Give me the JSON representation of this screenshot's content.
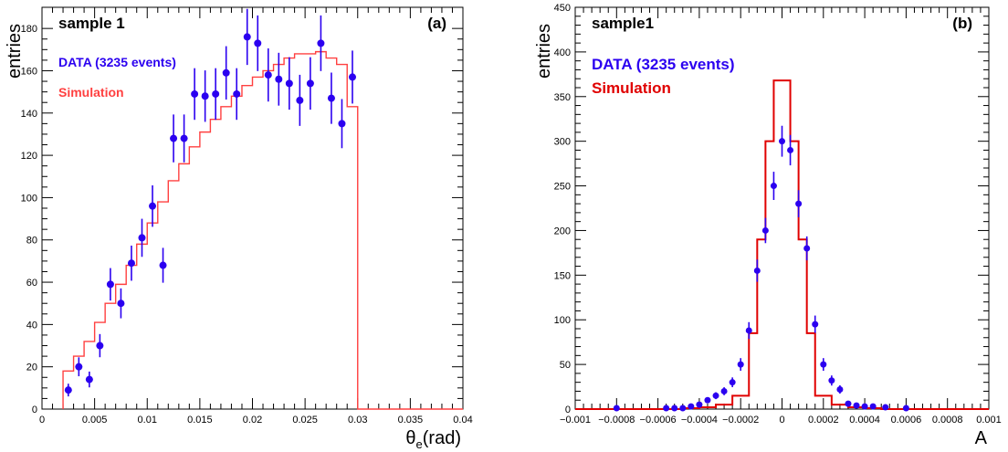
{
  "chart_data": [
    {
      "type": "scatter",
      "panel_label": "(a)",
      "title": "sample 1",
      "xlabel": "θe(rad)",
      "ylabel": "entries",
      "xlim": [
        0,
        0.04
      ],
      "ylim": [
        0,
        190
      ],
      "x_ticks": [
        0,
        0.005,
        0.01,
        0.015,
        0.02,
        0.025,
        0.03,
        0.035,
        0.04
      ],
      "x_tick_labels": [
        "0",
        "0.005",
        "0.01",
        "0.015",
        "0.02",
        "0.025",
        "0.03",
        "0.035",
        "0.04"
      ],
      "y_ticks": [
        0,
        20,
        40,
        60,
        80,
        100,
        120,
        140,
        160,
        180
      ],
      "y_tick_labels": [
        "0",
        "20",
        "40",
        "60",
        "80",
        "100",
        "120",
        "140",
        "160",
        "180"
      ],
      "grid": false,
      "legend_position": "top-left",
      "series": [
        {
          "name": "DATA (3235 events)",
          "kind": "points-with-errors",
          "color": "#2b00f0",
          "x": [
            0.0025,
            0.0035,
            0.0045,
            0.0055,
            0.0065,
            0.0075,
            0.0085,
            0.0095,
            0.0105,
            0.0115,
            0.0125,
            0.0135,
            0.0145,
            0.0155,
            0.0165,
            0.0175,
            0.0185,
            0.0195,
            0.0205,
            0.0215,
            0.0225,
            0.0235,
            0.0245,
            0.0255,
            0.0265,
            0.0275,
            0.0285,
            0.0295
          ],
          "y": [
            9,
            20,
            14,
            30,
            59,
            50,
            69,
            81,
            96,
            68,
            128,
            128,
            149,
            148,
            149,
            159,
            149,
            176,
            173,
            158,
            156,
            154,
            146,
            154,
            173,
            147,
            135,
            157
          ]
        },
        {
          "name": "Simulation",
          "kind": "step",
          "color": "#ff4040",
          "edges": [
            0.002,
            0.003,
            0.004,
            0.005,
            0.006,
            0.007,
            0.008,
            0.009,
            0.01,
            0.011,
            0.012,
            0.013,
            0.014,
            0.015,
            0.016,
            0.017,
            0.018,
            0.019,
            0.02,
            0.021,
            0.022,
            0.023,
            0.024,
            0.025,
            0.026,
            0.027,
            0.028,
            0.029,
            0.03
          ],
          "values": [
            18,
            25,
            32,
            41,
            50,
            59,
            68,
            78,
            88,
            98,
            108,
            116,
            124,
            131,
            137,
            143,
            148,
            153,
            157,
            160,
            163,
            166,
            168,
            168,
            169,
            166,
            163,
            143
          ]
        }
      ]
    },
    {
      "type": "scatter",
      "panel_label": "(b)",
      "title": "sample1",
      "xlabel": "A",
      "ylabel": "entries",
      "xlim": [
        -0.001,
        0.001
      ],
      "ylim": [
        0,
        450
      ],
      "x_ticks": [
        -0.001,
        -0.0008,
        -0.0006,
        -0.0004,
        -0.0002,
        0,
        0.0002,
        0.0004,
        0.0006,
        0.0008,
        0.001
      ],
      "x_tick_labels": [
        "−0.001",
        "−0.0008",
        "−0.0006",
        "−0.0004",
        "−0.0002",
        "0",
        "0.0002",
        "0.0004",
        "0.0006",
        "0.0008",
        "0.001"
      ],
      "y_ticks": [
        0,
        50,
        100,
        150,
        200,
        250,
        300,
        350,
        400,
        450
      ],
      "y_tick_labels": [
        "0",
        "50",
        "100",
        "150",
        "200",
        "250",
        "300",
        "350",
        "400",
        "450"
      ],
      "grid": false,
      "legend_position": "top-left",
      "series": [
        {
          "name": "DATA (3235 events)",
          "kind": "points-with-errors",
          "color": "#2b00f0",
          "x": [
            -0.0008,
            -0.00056,
            -0.00052,
            -0.00048,
            -0.00044,
            -0.0004,
            -0.00036,
            -0.00032,
            -0.00028,
            -0.00024,
            -0.0002,
            -0.00016,
            -0.00012,
            -8e-05,
            -4e-05,
            0,
            4e-05,
            8e-05,
            0.00012,
            0.00016,
            0.0002,
            0.00024,
            0.00028,
            0.00032,
            0.00036,
            0.0004,
            0.00044,
            0.0005,
            0.0006
          ],
          "y": [
            1,
            1,
            1,
            1,
            3,
            5,
            10,
            15,
            20,
            30,
            50,
            88,
            155,
            200,
            250,
            300,
            290,
            230,
            180,
            95,
            50,
            32,
            22,
            6,
            4,
            3,
            3,
            2,
            1
          ]
        },
        {
          "name": "Simulation",
          "kind": "step",
          "color": "#e00000",
          "edges": [
            -0.001,
            -0.00064,
            -0.00056,
            -0.00048,
            -0.0004,
            -0.00032,
            -0.00024,
            -0.00016,
            -0.00012,
            -8e-05,
            -4e-05,
            0,
            4e-05,
            8e-05,
            0.00012,
            0.00016,
            0.00024,
            0.00032,
            0.0004,
            0.00048,
            0.001
          ],
          "values": [
            0,
            0,
            0,
            1,
            2,
            5,
            15,
            85,
            190,
            300,
            368,
            368,
            300,
            190,
            85,
            15,
            5,
            2,
            1,
            0
          ]
        }
      ]
    }
  ]
}
